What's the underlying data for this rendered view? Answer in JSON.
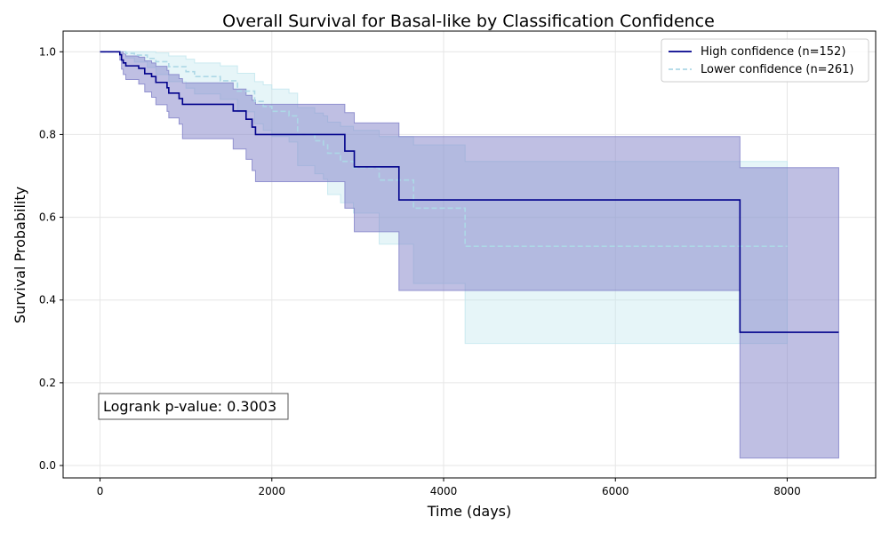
{
  "chart_data": {
    "type": "line",
    "title": "Overall Survival for Basal-like by Classification Confidence",
    "xlabel": "Time (days)",
    "ylabel": "Survival Probability",
    "xlim": [
      -430,
      9030
    ],
    "ylim": [
      -0.03,
      1.05
    ],
    "x_ticks": [
      0,
      2000,
      4000,
      6000,
      8000
    ],
    "x_tick_labels": [
      "0",
      "2000",
      "4000",
      "6000",
      "8000"
    ],
    "y_ticks": [
      0.0,
      0.2,
      0.4,
      0.6,
      0.8,
      1.0
    ],
    "y_tick_labels": [
      "0.0",
      "0.2",
      "0.4",
      "0.6",
      "0.8",
      "1.0"
    ],
    "grid": true,
    "legend_position": "top-right",
    "annotation": "Logrank p-value: 0.3003",
    "series": [
      {
        "name": "High confidence (n=152)",
        "color": "#00008b",
        "band_color": "#8080c8",
        "line_style": "solid",
        "steps": [
          [
            0,
            1.0
          ],
          [
            230,
            0.993
          ],
          [
            250,
            0.98
          ],
          [
            270,
            0.973
          ],
          [
            300,
            0.966
          ],
          [
            450,
            0.96
          ],
          [
            520,
            0.947
          ],
          [
            600,
            0.94
          ],
          [
            650,
            0.926
          ],
          [
            780,
            0.913
          ],
          [
            800,
            0.9
          ],
          [
            920,
            0.887
          ],
          [
            960,
            0.873
          ],
          [
            1550,
            0.857
          ],
          [
            1700,
            0.837
          ],
          [
            1770,
            0.818
          ],
          [
            1810,
            0.8
          ],
          [
            2850,
            0.76
          ],
          [
            2960,
            0.722
          ],
          [
            3480,
            0.642
          ],
          [
            7450,
            0.322
          ],
          [
            8600,
            0.322
          ]
        ],
        "ci_lower": [
          [
            0,
            1.0
          ],
          [
            230,
            0.98
          ],
          [
            250,
            0.958
          ],
          [
            270,
            0.945
          ],
          [
            300,
            0.933
          ],
          [
            450,
            0.922
          ],
          [
            520,
            0.903
          ],
          [
            600,
            0.89
          ],
          [
            650,
            0.872
          ],
          [
            780,
            0.856
          ],
          [
            800,
            0.84
          ],
          [
            920,
            0.825
          ],
          [
            960,
            0.79
          ],
          [
            1550,
            0.765
          ],
          [
            1700,
            0.74
          ],
          [
            1770,
            0.713
          ],
          [
            1810,
            0.686
          ],
          [
            2850,
            0.622
          ],
          [
            2960,
            0.565
          ],
          [
            3480,
            0.423
          ],
          [
            7450,
            0.018
          ],
          [
            8600,
            0.018
          ]
        ],
        "ci_upper": [
          [
            0,
            1.0
          ],
          [
            230,
            1.0
          ],
          [
            250,
            1.0
          ],
          [
            270,
            0.995
          ],
          [
            300,
            0.99
          ],
          [
            450,
            0.987
          ],
          [
            520,
            0.978
          ],
          [
            600,
            0.973
          ],
          [
            650,
            0.965
          ],
          [
            780,
            0.955
          ],
          [
            800,
            0.945
          ],
          [
            920,
            0.935
          ],
          [
            960,
            0.925
          ],
          [
            1550,
            0.91
          ],
          [
            1700,
            0.895
          ],
          [
            1770,
            0.883
          ],
          [
            1810,
            0.873
          ],
          [
            2850,
            0.853
          ],
          [
            2960,
            0.828
          ],
          [
            3480,
            0.795
          ],
          [
            7450,
            0.72
          ],
          [
            8600,
            0.72
          ]
        ]
      },
      {
        "name": "Lower confidence (n=261)",
        "color": "#add8e6",
        "band_color": "#c0e6ee",
        "line_style": "dashed",
        "steps": [
          [
            0,
            1.0
          ],
          [
            300,
            0.996
          ],
          [
            400,
            0.992
          ],
          [
            550,
            0.984
          ],
          [
            650,
            0.976
          ],
          [
            800,
            0.964
          ],
          [
            1000,
            0.952
          ],
          [
            1100,
            0.94
          ],
          [
            1400,
            0.93
          ],
          [
            1600,
            0.905
          ],
          [
            1800,
            0.88
          ],
          [
            1900,
            0.868
          ],
          [
            2000,
            0.856
          ],
          [
            2200,
            0.845
          ],
          [
            2300,
            0.8
          ],
          [
            2500,
            0.785
          ],
          [
            2600,
            0.775
          ],
          [
            2650,
            0.755
          ],
          [
            2800,
            0.735
          ],
          [
            2950,
            0.72
          ],
          [
            3250,
            0.69
          ],
          [
            3650,
            0.622
          ],
          [
            4250,
            0.53
          ],
          [
            8000,
            0.53
          ]
        ],
        "ci_lower": [
          [
            0,
            1.0
          ],
          [
            300,
            0.985
          ],
          [
            400,
            0.975
          ],
          [
            550,
            0.962
          ],
          [
            650,
            0.945
          ],
          [
            800,
            0.928
          ],
          [
            1000,
            0.912
          ],
          [
            1100,
            0.898
          ],
          [
            1400,
            0.885
          ],
          [
            1600,
            0.855
          ],
          [
            1800,
            0.826
          ],
          [
            1900,
            0.81
          ],
          [
            2000,
            0.795
          ],
          [
            2200,
            0.782
          ],
          [
            2300,
            0.725
          ],
          [
            2500,
            0.705
          ],
          [
            2600,
            0.692
          ],
          [
            2650,
            0.655
          ],
          [
            2800,
            0.635
          ],
          [
            2950,
            0.61
          ],
          [
            3250,
            0.535
          ],
          [
            3650,
            0.44
          ],
          [
            4250,
            0.295
          ],
          [
            8000,
            0.295
          ]
        ],
        "ci_upper": [
          [
            0,
            1.0
          ],
          [
            300,
            1.0
          ],
          [
            400,
            1.0
          ],
          [
            550,
            1.0
          ],
          [
            650,
            0.997
          ],
          [
            800,
            0.99
          ],
          [
            1000,
            0.982
          ],
          [
            1100,
            0.973
          ],
          [
            1400,
            0.966
          ],
          [
            1600,
            0.948
          ],
          [
            1800,
            0.928
          ],
          [
            1900,
            0.92
          ],
          [
            2000,
            0.91
          ],
          [
            2200,
            0.9
          ],
          [
            2300,
            0.865
          ],
          [
            2500,
            0.852
          ],
          [
            2600,
            0.845
          ],
          [
            2650,
            0.83
          ],
          [
            2800,
            0.82
          ],
          [
            2950,
            0.81
          ],
          [
            3250,
            0.795
          ],
          [
            3650,
            0.775
          ],
          [
            4250,
            0.735
          ],
          [
            8000,
            0.735
          ]
        ]
      }
    ]
  }
}
